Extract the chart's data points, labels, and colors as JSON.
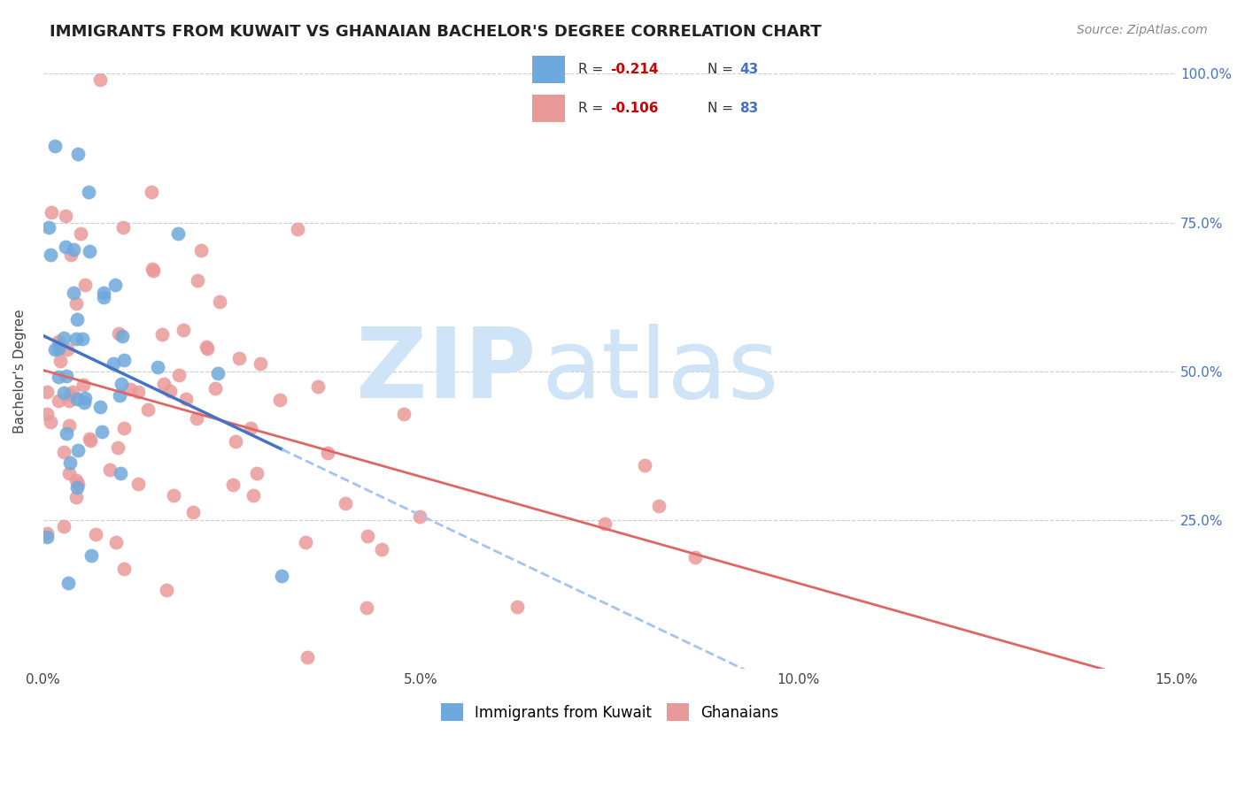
{
  "title": "IMMIGRANTS FROM KUWAIT VS GHANAIAN BACHELOR'S DEGREE CORRELATION CHART",
  "source": "Source: ZipAtlas.com",
  "ylabel": "Bachelor's Degree",
  "legend_entry1_r": "R = -0.214",
  "legend_entry1_n": "N = 43",
  "legend_entry2_r": "R = -0.106",
  "legend_entry2_n": "N = 83",
  "legend_label1": "Immigrants from Kuwait",
  "legend_label2": "Ghanaians",
  "blue_color": "#6fa8dc",
  "pink_color": "#ea9999",
  "blue_line_color": "#4472c4",
  "pink_line_color": "#e06666",
  "trendline_blue_dashed_color": "#a4c2f4",
  "background_color": "#ffffff",
  "watermark_zip": "ZIP",
  "watermark_atlas": "atlas",
  "watermark_color": "#d0e4f7",
  "right_tick_color": "#4472c4",
  "title_fontsize": 13,
  "axis_label_fontsize": 11,
  "tick_fontsize": 11,
  "legend_r_color": "#cc0000",
  "legend_n_color": "#4472c4"
}
